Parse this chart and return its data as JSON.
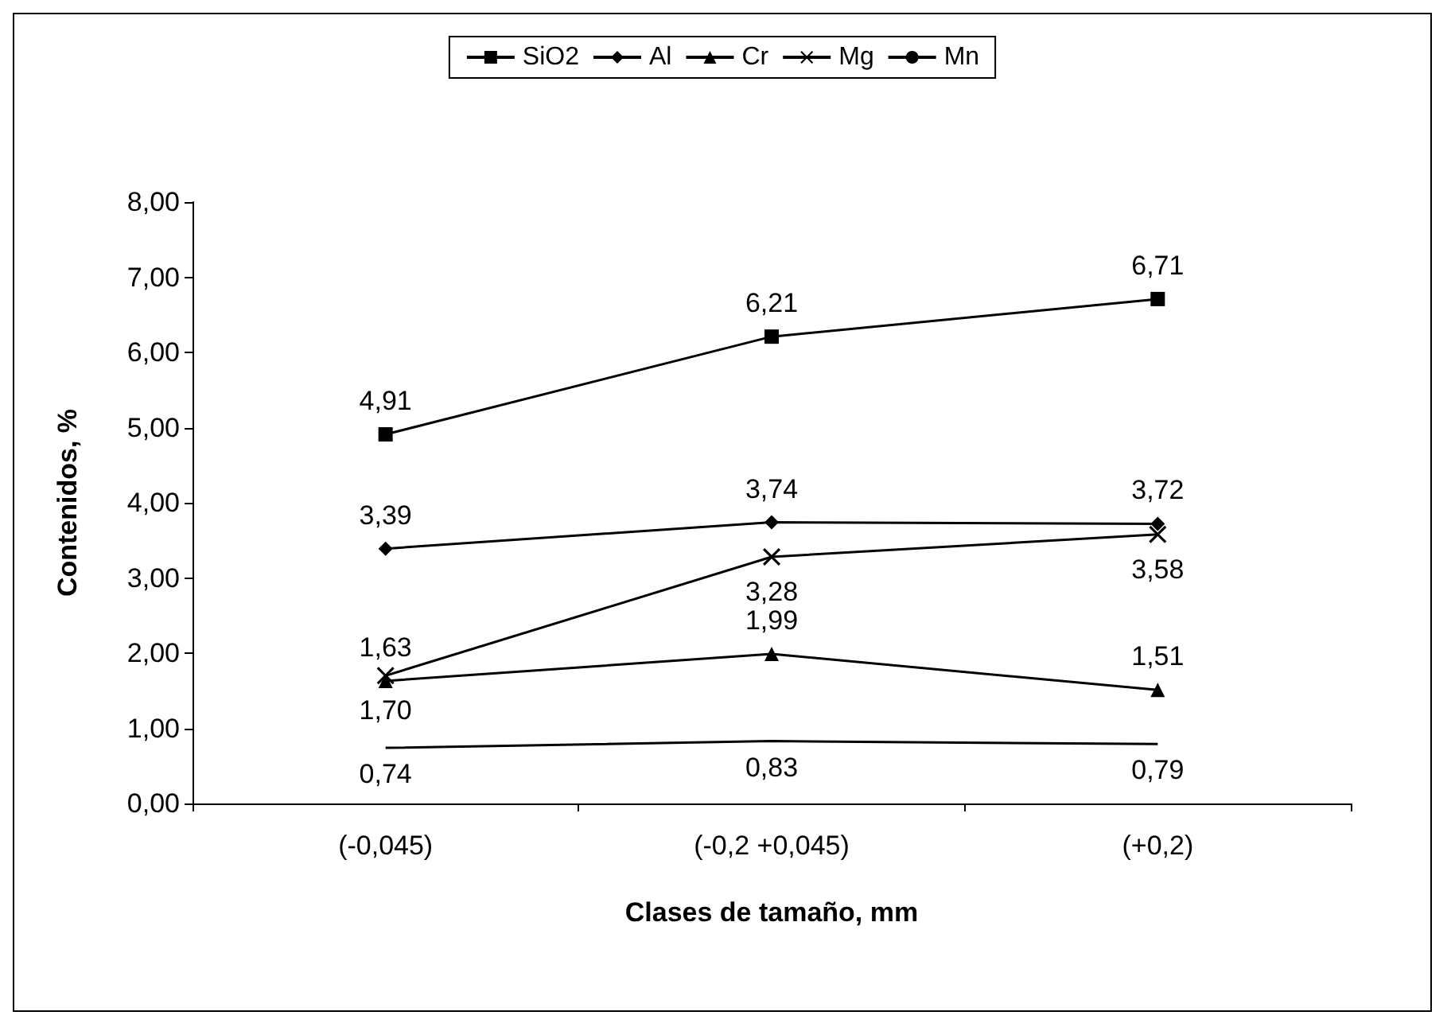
{
  "chart_data": {
    "type": "line",
    "xlabel": "Clases de tamaño, mm",
    "ylabel": "Contenidos, %",
    "categories": [
      "(-0,045)",
      "(-0,2 +0,045)",
      "(+0,2)"
    ],
    "series": [
      {
        "name": "SiO2",
        "color": "#000000",
        "marker": "square",
        "values": [
          4.91,
          6.21,
          6.71
        ],
        "value_labels": [
          "4,91",
          "6,21",
          "6,71"
        ]
      },
      {
        "name": "Al",
        "color": "#000000",
        "marker": "diamond",
        "values": [
          3.39,
          3.74,
          3.72
        ],
        "value_labels": [
          "3,39",
          "3,74",
          "3,72"
        ]
      },
      {
        "name": "Cr",
        "color": "#000000",
        "marker": "triangle",
        "values": [
          1.63,
          1.99,
          1.51
        ],
        "value_labels": [
          "1,63",
          "1,99",
          "1,51"
        ]
      },
      {
        "name": "Mg",
        "color": "#000000",
        "marker": "cross",
        "values": [
          1.7,
          3.28,
          3.58
        ],
        "value_labels": [
          "1,70",
          "3,28",
          "3,58"
        ]
      },
      {
        "name": "Mn",
        "color": "#000000",
        "marker": "none",
        "values": [
          0.74,
          0.83,
          0.79
        ],
        "value_labels": [
          "0,74",
          "0,83",
          "0,79"
        ]
      }
    ],
    "ylim": [
      0,
      8
    ],
    "yticks": [
      {
        "value": 0,
        "label": "0,00"
      },
      {
        "value": 1,
        "label": "1,00"
      },
      {
        "value": 2,
        "label": "2,00"
      },
      {
        "value": 3,
        "label": "3,00"
      },
      {
        "value": 4,
        "label": "4,00"
      },
      {
        "value": 5,
        "label": "5,00"
      },
      {
        "value": 6,
        "label": "6,00"
      },
      {
        "value": 7,
        "label": "7,00"
      },
      {
        "value": 8,
        "label": "8,00"
      }
    ],
    "grid": false,
    "legend": "top",
    "line_style": "solid"
  }
}
